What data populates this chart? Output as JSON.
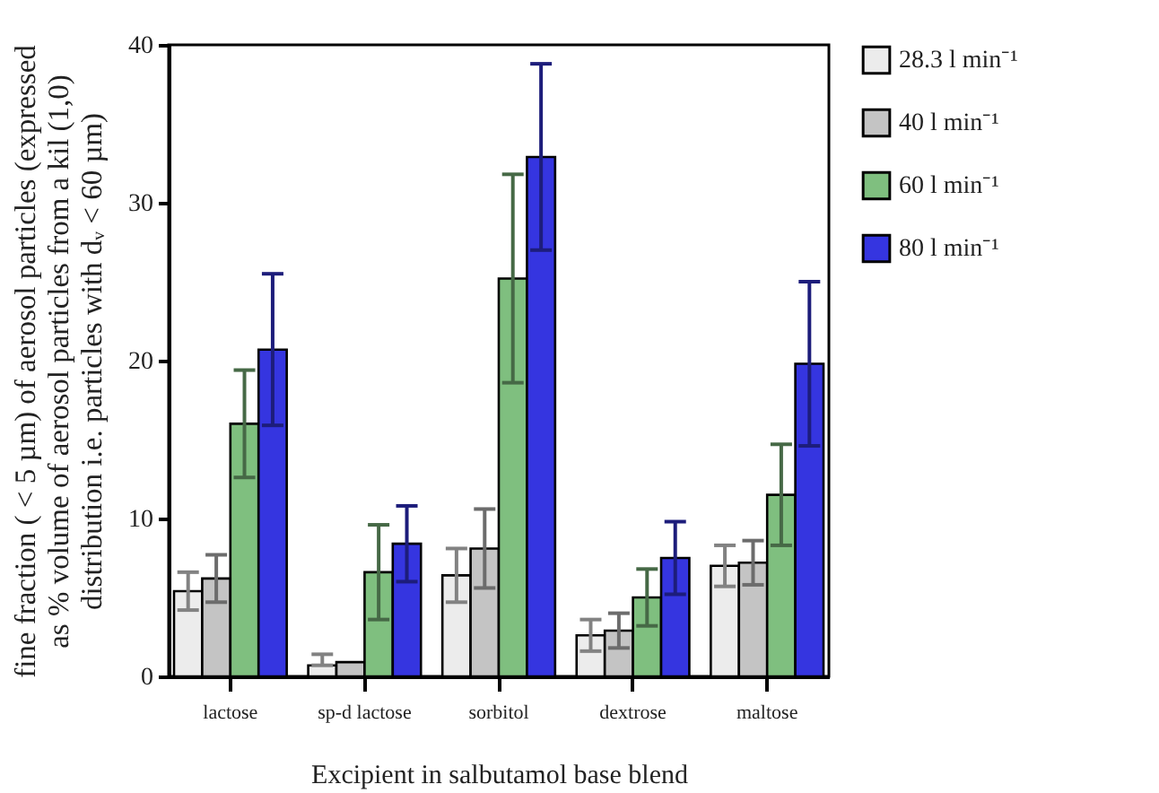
{
  "chart_data": {
    "type": "bar",
    "xlabel": "Excipient in salbutamol base blend",
    "ylabel": "fine fraction ( < 5 µm) of aerosol particles (expressed as % volume of aerosol particles from a kil (1,0) distribution i.e. particles with dᵥ < 60 µm)",
    "categories": [
      "lactose",
      "sp-d lactose",
      "sorbitol",
      "dextrose",
      "maltose"
    ],
    "series": [
      {
        "name": "28.3 l min⁻¹",
        "color": "#ececec",
        "values": [
          5.4,
          0.7,
          6.4,
          2.6,
          7.0
        ],
        "errors": [
          1.2,
          [
            0.7,
            1.4
          ],
          1.7,
          1.0,
          1.3
        ]
      },
      {
        "name": "40 l min⁻¹",
        "color": "#c4c4c4",
        "values": [
          6.2,
          0.9,
          8.1,
          2.9,
          7.2
        ],
        "errors": [
          1.5,
          null,
          2.5,
          1.1,
          1.4
        ]
      },
      {
        "name": "60 l min⁻¹",
        "color": "#7fbf7f",
        "values": [
          16.0,
          6.6,
          25.2,
          5.0,
          11.5
        ],
        "errors": [
          3.4,
          3.0,
          6.6,
          1.8,
          3.2
        ]
      },
      {
        "name": "80 l min⁻¹",
        "color": "#3535e0",
        "values": [
          20.7,
          8.4,
          32.9,
          7.5,
          19.8
        ],
        "errors": [
          4.8,
          2.4,
          5.9,
          2.3,
          5.2
        ]
      }
    ],
    "ylim": [
      0,
      40
    ],
    "yticks": [
      0,
      10,
      20,
      30,
      40
    ],
    "grid": false,
    "legend": "right"
  }
}
